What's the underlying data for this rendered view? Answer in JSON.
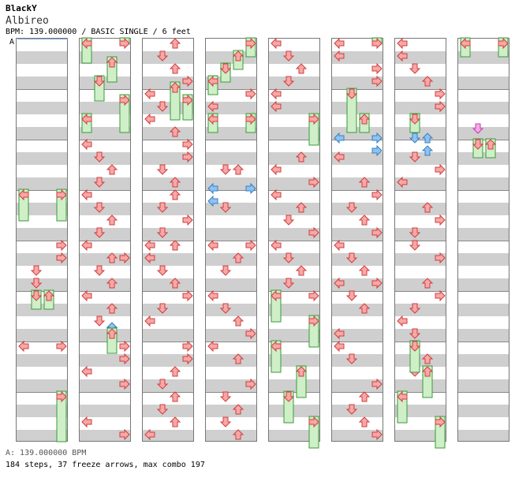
{
  "header": {
    "artist": "BlackY",
    "song": "Albireo",
    "meta": "BPM: 139.000000 / BASIC SINGLE / 6 feet",
    "marker": "A"
  },
  "footer": {
    "bpm_line": "A: 139.000000 BPM",
    "stats": "184 steps, 37 freeze arrows, max combo 197"
  },
  "colors": {
    "tap": "#f7a8a8",
    "tap_stroke": "#d23c3c",
    "shock": "#8cc4f0",
    "shock_stroke": "#3c7cc0",
    "pink": "#f7a8e8",
    "pink_stroke": "#c040b0",
    "freeze": "#cfefc8",
    "freeze_stroke": "#3a9a3a",
    "stripe_dark": "#cfcfcf",
    "stripe_light": "#ffffff"
  }
}
